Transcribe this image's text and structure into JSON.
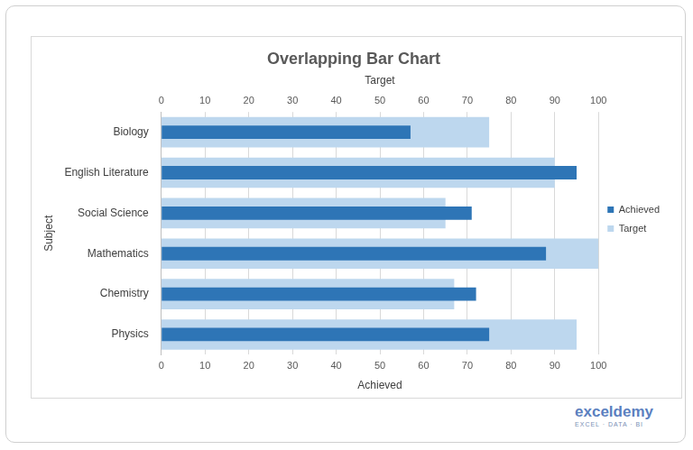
{
  "chart_data": {
    "type": "bar",
    "orientation": "horizontal",
    "title": "Overlapping Bar Chart",
    "ylabel": "Subject",
    "xlabel": "Achieved",
    "x2label": "Target",
    "categories": [
      "Biology",
      "English Literature",
      "Social Science",
      "Mathematics",
      "Chemistry",
      "Physics"
    ],
    "series": [
      {
        "name": "Achieved",
        "color": "#2e75b6",
        "values": [
          57,
          95,
          71,
          88,
          72,
          75
        ]
      },
      {
        "name": "Target",
        "color": "#bdd7ee",
        "axis": "x2",
        "values": [
          75,
          90,
          65,
          100,
          67,
          95
        ]
      }
    ],
    "xlim": [
      0,
      100
    ],
    "xticks": [
      0,
      10,
      20,
      30,
      40,
      50,
      60,
      70,
      80,
      90,
      100
    ],
    "x2lim": [
      0,
      100
    ],
    "x2ticks": [
      0,
      10,
      20,
      30,
      40,
      50,
      60,
      70,
      80,
      90,
      100
    ],
    "grid": true,
    "legend": "right",
    "annotations": [
      "exceldemy",
      "EXCEL · DATA · BI"
    ]
  }
}
